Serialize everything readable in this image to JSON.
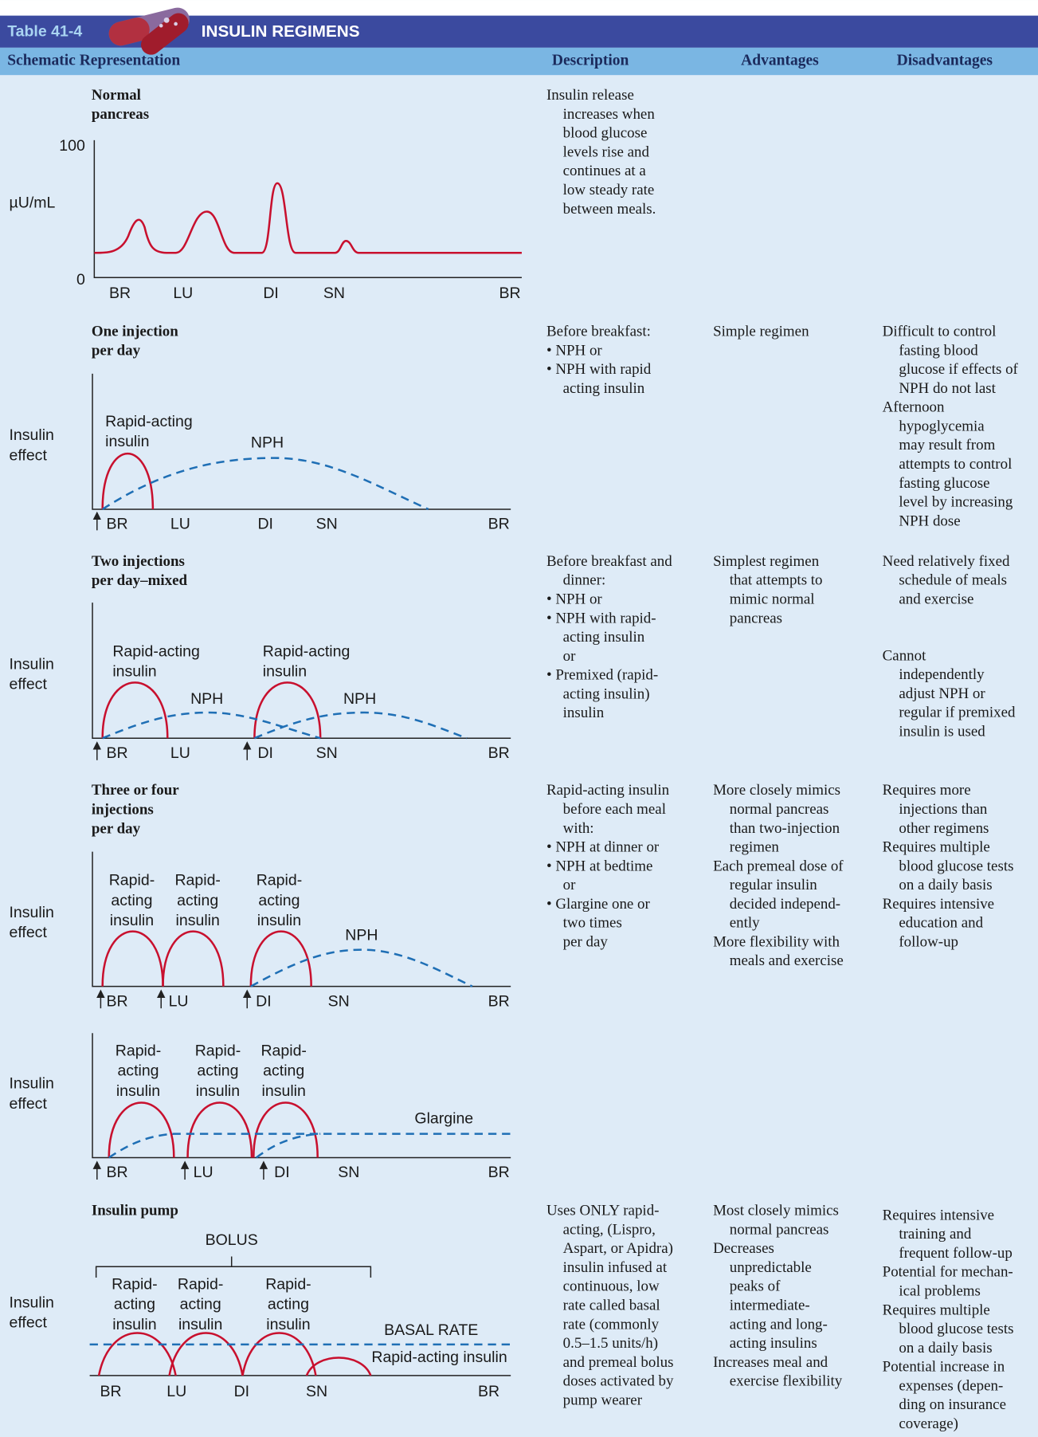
{
  "header": {
    "table_number": "Table 41-4",
    "title": "INSULIN REGIMENS"
  },
  "columns": [
    "Schematic Representation",
    "Description",
    "Advantages",
    "Disadvantages"
  ],
  "rows": [
    {
      "title": [
        "Normal",
        "pancreas"
      ],
      "diagram": {
        "y_top": "100",
        "y_axis_label": "µU/mL",
        "y_bottom": "0",
        "x_labels": [
          "BR",
          "LU",
          "DI",
          "SN",
          "BR"
        ]
      },
      "description": [
        [
          "Insulin release",
          "increases when",
          "blood glucose",
          "levels rise and",
          "continues at a",
          "low steady rate",
          "between meals."
        ]
      ]
    },
    {
      "title": [
        "One injection",
        "per day"
      ],
      "diagram": {
        "y_axis_label": [
          "Insulin",
          "effect"
        ],
        "curve_labels": [
          [
            "Rapid-acting",
            "insulin"
          ],
          [
            "NPH"
          ]
        ],
        "x_labels": [
          "BR",
          "LU",
          "DI",
          "SN",
          "BR"
        ]
      },
      "description": [
        [
          "Before breakfast:"
        ],
        [
          "• NPH or"
        ],
        [
          "• NPH with rapid",
          "acting insulin"
        ]
      ],
      "advantages": [
        [
          "Simple regimen"
        ]
      ],
      "disadvantages": [
        [
          "Difficult to control",
          "fasting blood",
          "glucose if effects of",
          "NPH do not last"
        ],
        [
          "Afternoon",
          "hypoglycemia",
          "may result from",
          "attempts to control",
          "fasting glucose",
          "level by increasing",
          "NPH dose"
        ]
      ]
    },
    {
      "title": [
        "Two injections",
        "per day–mixed"
      ],
      "diagram": {
        "y_axis_label": [
          "Insulin",
          "effect"
        ],
        "curve_labels": [
          [
            "Rapid-acting",
            "insulin"
          ],
          [
            "NPH"
          ],
          [
            "Rapid-acting",
            "insulin"
          ],
          [
            "NPH"
          ]
        ],
        "x_labels": [
          "BR",
          "LU",
          "DI",
          "SN",
          "BR"
        ]
      },
      "description": [
        [
          "Before breakfast and",
          "dinner:"
        ],
        [
          "• NPH or"
        ],
        [
          "• NPH with rapid-",
          "acting insulin",
          "or"
        ],
        [
          "• Premixed (rapid-",
          "acting insulin)",
          "insulin"
        ]
      ],
      "advantages": [
        [
          "Simplest regimen",
          "that attempts to",
          "mimic normal",
          "pancreas"
        ]
      ],
      "disadvantages": [
        [
          "Need relatively fixed",
          "schedule of meals",
          "and exercise"
        ],
        [
          "Cannot",
          "independently",
          "adjust NPH or",
          "regular if premixed",
          "insulin is used"
        ]
      ]
    },
    {
      "title": [
        "Three or four",
        "injections",
        "per day"
      ],
      "diagram": {
        "y_axis_label": [
          "Insulin",
          "effect"
        ],
        "curve_labels": [
          [
            "Rapid-",
            "acting",
            "insulin"
          ],
          [
            "Rapid-",
            "acting",
            "insulin"
          ],
          [
            "Rapid-",
            "acting",
            "insulin"
          ],
          [
            "NPH"
          ]
        ],
        "x_labels": [
          "BR",
          "LU",
          "DI",
          "SN",
          "BR"
        ]
      },
      "description": [
        [
          "Rapid-acting insulin",
          "before each meal",
          "with:"
        ],
        [
          "• NPH at dinner or"
        ],
        [
          "• NPH at bedtime",
          "or"
        ],
        [
          "• Glargine one or",
          "two times",
          "per day"
        ]
      ],
      "advantages": [
        [
          "More closely mimics",
          "normal pancreas",
          "than two-injection",
          "regimen"
        ],
        [
          "Each premeal dose of",
          "regular insulin",
          "decided independ-",
          "ently"
        ],
        [
          "More flexibility with",
          "meals and exercise"
        ]
      ],
      "disadvantages": [
        [
          "Requires more",
          "injections than",
          "other regimens"
        ],
        [
          "Requires multiple",
          "blood glucose tests",
          "on a daily basis"
        ],
        [
          "Requires intensive",
          "education and",
          "follow-up"
        ]
      ]
    },
    {
      "diagram": {
        "y_axis_label": [
          "Insulin",
          "effect"
        ],
        "curve_labels": [
          [
            "Rapid-",
            "acting",
            "insulin"
          ],
          [
            "Rapid-",
            "acting",
            "insulin"
          ],
          [
            "Rapid-",
            "acting",
            "insulin"
          ],
          [
            "Glargine"
          ]
        ],
        "x_labels": [
          "BR",
          "LU",
          "DI",
          "SN",
          "BR"
        ]
      }
    },
    {
      "title": [
        "Insulin pump"
      ],
      "diagram": {
        "bracket_label": "BOLUS",
        "y_axis_label": [
          "Insulin",
          "effect"
        ],
        "curve_labels": [
          [
            "Rapid-",
            "acting",
            "insulin"
          ],
          [
            "Rapid-",
            "acting",
            "insulin"
          ],
          [
            "Rapid-",
            "acting",
            "insulin"
          ],
          [
            "BASAL RATE"
          ],
          [
            "Rapid-acting insulin"
          ]
        ],
        "x_labels": [
          "BR",
          "LU",
          "DI",
          "SN",
          "BR"
        ]
      },
      "description": [
        [
          "Uses ONLY rapid-",
          "acting, (Lispro,",
          "Aspart, or Apidra)",
          "insulin infused at",
          "continuous, low",
          "rate called basal",
          "rate (commonly",
          "0.5–1.5 units/h)",
          "and premeal bolus",
          "doses activated by",
          "pump wearer"
        ]
      ],
      "advantages": [
        [
          "Most closely mimics",
          "normal pancreas"
        ],
        [
          "Decreases",
          "unpredictable",
          "peaks of",
          "intermediate-",
          "acting and long-",
          "acting insulins"
        ],
        [
          "Increases meal and",
          "exercise flexibility"
        ]
      ],
      "disadvantages": [
        [
          "Requires intensive",
          "training and",
          "frequent follow-up"
        ],
        [
          "Potential for mechan-",
          "ical problems"
        ],
        [
          "Requires multiple",
          "blood glucose tests",
          "on a daily basis"
        ],
        [
          "Potential increase in",
          "expenses (depen-",
          "ding on insurance",
          "coverage)"
        ]
      ]
    }
  ]
}
